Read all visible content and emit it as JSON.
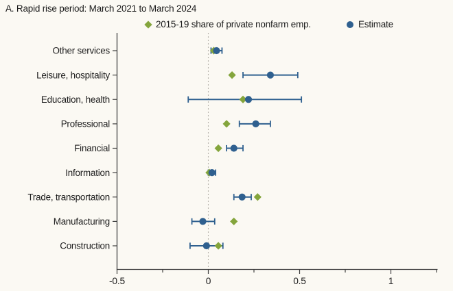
{
  "title": "A. Rapid rise period: March 2021 to March 2024",
  "legend": {
    "items": [
      {
        "label": "2015-19 share of private nonfarm emp.",
        "marker": "diamond",
        "color": "#84a53c"
      },
      {
        "label": "Estimate",
        "marker": "circle",
        "color": "#2f608f"
      }
    ]
  },
  "colors": {
    "share_diamond": "#84a53c",
    "estimate_blue": "#2f608f",
    "axis": "#3f3f3f",
    "text": "#1c1c1c",
    "zero_line": "#b7b4ac",
    "background": "#fbf9f3"
  },
  "chart_data": {
    "type": "scatter",
    "subtype": "horizontal-dot-plot-with-error-bars",
    "title": "A. Rapid rise period: March 2021 to March 2024",
    "xlabel": "",
    "ylabel": "",
    "xlim": [
      -0.5,
      1.25
    ],
    "x_tick_values": [
      -0.5,
      0,
      0.5,
      1
    ],
    "x_tick_labels": [
      "-0.5",
      "0",
      "0.5",
      "1"
    ],
    "x_minor_ticks": [
      -0.25,
      0.25,
      0.75,
      1.25
    ],
    "zero_reference_line": true,
    "grid": false,
    "legend_position": "top",
    "categories": [
      "Other services",
      "Leisure, hospitality",
      "Education, health",
      "Professional",
      "Financial",
      "Information",
      "Trade, transportation",
      "Manufacturing",
      "Construction"
    ],
    "series": [
      {
        "name": "2015-19 share of private nonfarm emp.",
        "marker": "diamond",
        "color": "#84a53c",
        "values": [
          0.03,
          0.13,
          0.19,
          0.1,
          0.055,
          0.005,
          0.27,
          0.14,
          0.055
        ]
      },
      {
        "name": "Estimate",
        "marker": "circle",
        "color": "#2f608f",
        "values": [
          0.045,
          0.34,
          0.22,
          0.26,
          0.14,
          0.02,
          0.185,
          -0.03,
          -0.01
        ],
        "ci_low": [
          0.015,
          0.19,
          -0.11,
          0.17,
          0.1,
          0.0,
          0.14,
          -0.09,
          -0.1
        ],
        "ci_high": [
          0.075,
          0.49,
          0.51,
          0.34,
          0.19,
          0.04,
          0.235,
          0.035,
          0.08
        ]
      }
    ]
  }
}
